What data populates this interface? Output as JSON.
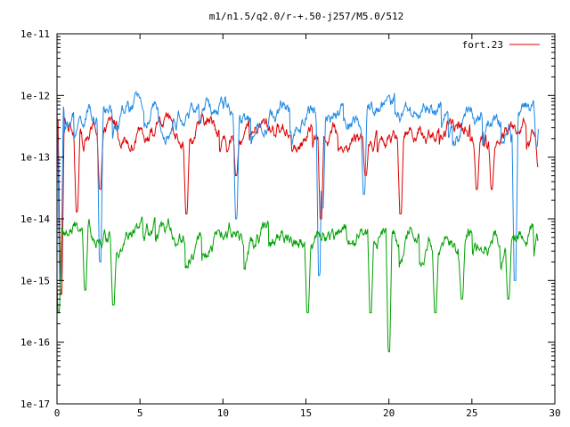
{
  "chart_data": {
    "type": "line",
    "title": "m1/n1.5/q2.0/r-+.50-j257/M5.0/512",
    "xlabel": "",
    "ylabel": "",
    "xlim": [
      0,
      30
    ],
    "ylim": [
      1e-17,
      1e-11
    ],
    "log_y": true,
    "grid": false,
    "legend_position": "top-right",
    "x_ticks": [
      0,
      5,
      10,
      15,
      20,
      25,
      30
    ],
    "x_tick_labels": [
      "0",
      "5",
      "10",
      "15",
      "20",
      "25",
      "30"
    ],
    "y_ticks": [
      1e-17,
      1e-16,
      1e-15,
      1e-14,
      1e-13,
      1e-12,
      1e-11
    ],
    "y_tick_labels": [
      "1e-17",
      "1e-16",
      "1e-15",
      "1e-14",
      "1e-13",
      "1e-12",
      "1e-11"
    ],
    "x_end": 29,
    "series": [
      {
        "name": "fort.23",
        "color": "#dd0000",
        "envelope": {
          "typical": 3e-13,
          "high": 5.5e-13,
          "low": 1.2e-13
        },
        "dips": [
          [
            0.25,
            6e-16
          ],
          [
            1.2,
            1.3e-14
          ],
          [
            2.6,
            3e-14
          ],
          [
            7.8,
            1.2e-14
          ],
          [
            10.8,
            5e-14
          ],
          [
            15.9,
            1e-14
          ],
          [
            18.6,
            5e-14
          ],
          [
            20.7,
            1.2e-14
          ],
          [
            25.3,
            3e-14
          ],
          [
            26.2,
            3e-14
          ],
          [
            29,
            7e-14
          ]
        ]
      },
      {
        "name": "",
        "color": "#1e88e5",
        "envelope": {
          "typical": 6e-13,
          "high": 1.4e-12,
          "low": 1.5e-13
        },
        "dips": [
          [
            0.2,
            1e-15
          ],
          [
            2.6,
            2e-15
          ],
          [
            10.8,
            1e-14
          ],
          [
            15.8,
            1.2e-15
          ],
          [
            16.0,
            1.5e-14
          ],
          [
            18.5,
            2.5e-14
          ],
          [
            27.6,
            1e-15
          ],
          [
            28.9,
            1.5e-13
          ]
        ]
      },
      {
        "name": "",
        "color": "#00a000",
        "envelope": {
          "typical": 6e-15,
          "high": 1.1e-14,
          "low": 1.5e-15
        },
        "dips": [
          [
            0.1,
            3e-16
          ],
          [
            1.7,
            7e-16
          ],
          [
            3.4,
            4e-16
          ],
          [
            15.1,
            3e-16
          ],
          [
            18.9,
            3e-16
          ],
          [
            20.0,
            7e-17
          ],
          [
            22.8,
            3e-16
          ],
          [
            24.4,
            5e-16
          ],
          [
            27.2,
            5e-16
          ]
        ]
      }
    ]
  }
}
